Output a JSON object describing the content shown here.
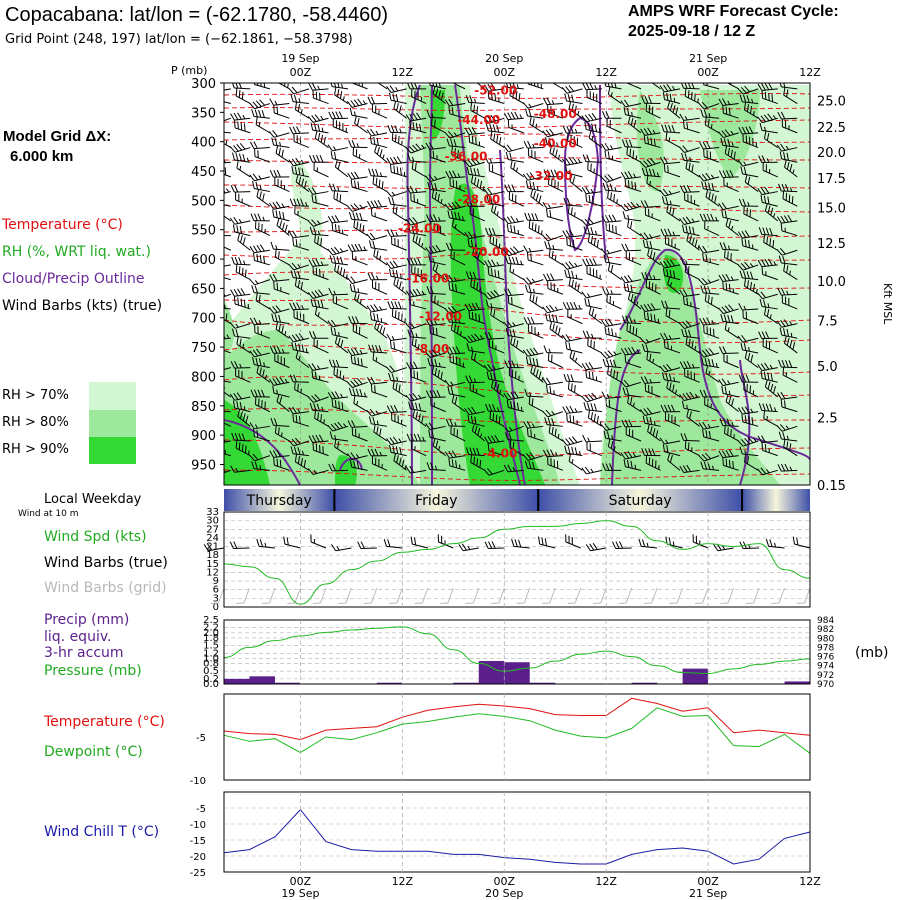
{
  "header": {
    "title": "Copacabana:  lat/lon = (-62.1780, -58.4460)",
    "grid_point": "Grid Point (248, 197) lat/lon = (−62.1861, −58.3798)",
    "cycle_label": "AMPS WRF Forecast Cycle:",
    "cycle_value": "2025-09-18 / 12  Z"
  },
  "sidebar": {
    "model_grid_label": "Model Grid ΔX:",
    "model_grid_value": "6.000 km",
    "temperature_label": "Temperature (°C)",
    "rh_label": "RH (%, WRT liq. wat.)",
    "cloud_label": "Cloud/Precip Outline",
    "wind_label": "Wind Barbs (kts) (true)",
    "rh70": "RH > 70%",
    "rh80": "RH > 80%",
    "rh90": "RH > 90%",
    "local_weekday": "Local Weekday",
    "wind_at": "Wind at 10 m",
    "wind_spd": "Wind Spd (kts)",
    "wind_barbs_true": "Wind Barbs (true)",
    "wind_barbs_grid": "Wind Barbs (grid)",
    "precip_1": "Precip (mm)",
    "precip_2": "liq. equiv.",
    "precip_3": "3-hr accum",
    "pressure": "Pressure (mb)",
    "pressure_unit": "(mb)",
    "temperature": "Temperature (°C)",
    "dewpoint": "Dewpoint (°C)",
    "wind_chill": "Wind Chill T (°C)"
  },
  "colors": {
    "rh70": "#d2f7d2",
    "rh80": "#9ee89e",
    "rh90": "#35d935",
    "temperature": "#e01010",
    "dewpoint": "#22bb22",
    "cloud": "#6a2a9a",
    "precip": "#5a1f8a",
    "windchill": "#1a1aa8",
    "grid": "#b0b0b0"
  },
  "chart_data": [
    {
      "type": "heatmap",
      "name": "cross-section",
      "x_top_labels": [
        {
          "t": 12,
          "label": "00Z",
          "date": "19 Sep"
        },
        {
          "t": 24,
          "label": "12Z",
          "date": ""
        },
        {
          "t": 36,
          "label": "00Z",
          "date": "20 Sep"
        },
        {
          "t": 48,
          "label": "12Z",
          "date": ""
        },
        {
          "t": 60,
          "label": "00Z",
          "date": "21 Sep"
        },
        {
          "t": 72,
          "label": "12Z",
          "date": ""
        }
      ],
      "xlim_hours": [
        3,
        72
      ],
      "p_axis_label": "P (mb)",
      "pressure_ticks": [
        300,
        350,
        400,
        450,
        500,
        550,
        600,
        650,
        700,
        750,
        800,
        850,
        900,
        950
      ],
      "ylim_mb": [
        300,
        985
      ],
      "height_axis_label": "Kft MSL",
      "height_ticks": [
        "25.0",
        "22.5",
        "20.0",
        "17.5",
        "15.0",
        "12.5",
        "10.0",
        "7.5",
        "5.0",
        "2.5",
        "0.15"
      ],
      "height_tick_pressures": [
        330,
        375,
        418,
        462,
        512,
        573,
        637,
        705,
        782,
        870,
        985
      ],
      "temperature_contour_labels": [
        {
          "label": "-52.00",
          "t": 35,
          "p": 320
        },
        {
          "label": "-48.00",
          "t": 42,
          "p": 360
        },
        {
          "label": "-44.00",
          "t": 33,
          "p": 370
        },
        {
          "label": "-40.00",
          "t": 42,
          "p": 410
        },
        {
          "label": "-36.00",
          "t": 31.5,
          "p": 432
        },
        {
          "label": "-32.00",
          "t": 41.5,
          "p": 465
        },
        {
          "label": "-28.00",
          "t": 33,
          "p": 505
        },
        {
          "label": "-24.00",
          "t": 26,
          "p": 555
        },
        {
          "label": "-20.00",
          "t": 34,
          "p": 595
        },
        {
          "label": "-16.00",
          "t": 27,
          "p": 640
        },
        {
          "label": "-12.00",
          "t": 28.5,
          "p": 705
        },
        {
          "label": "-8.00",
          "t": 27.5,
          "p": 760
        },
        {
          "label": "-4.00",
          "t": 35.5,
          "p": 938
        }
      ],
      "legend": [
        "RH > 70%",
        "RH > 80%",
        "RH > 90%"
      ]
    },
    {
      "type": "bar",
      "name": "local-weekday",
      "days": [
        {
          "label": "Thursday",
          "from": 3,
          "to": 16
        },
        {
          "label": "Friday",
          "from": 16,
          "to": 40
        },
        {
          "label": "Saturday",
          "from": 40,
          "to": 64
        },
        {
          "label": "",
          "from": 64,
          "to": 72
        }
      ]
    },
    {
      "type": "line",
      "name": "wind-speed",
      "ylabel": "Wind Spd (kts)",
      "ylim": [
        0,
        33
      ],
      "yticks": [
        0,
        3,
        6,
        9,
        12,
        15,
        18,
        21,
        24,
        27,
        30,
        33
      ],
      "x": [
        3,
        6,
        9,
        12,
        15,
        18,
        21,
        24,
        27,
        30,
        33,
        36,
        39,
        42,
        45,
        48,
        51,
        54,
        57,
        60,
        63,
        66,
        69,
        72
      ],
      "values": [
        15,
        14,
        10,
        1,
        8,
        13,
        16,
        19,
        20,
        22,
        24,
        27,
        28,
        28,
        29,
        30,
        28,
        23,
        20,
        22,
        21,
        22,
        13,
        10
      ],
      "barbs_true_speed": [
        20,
        22,
        24,
        20,
        15,
        16,
        18,
        20,
        22,
        24,
        26,
        28,
        30,
        30,
        30,
        30,
        28,
        26,
        24,
        24,
        24,
        26,
        24,
        22
      ],
      "barbs_grid_speed": [
        10,
        10,
        10,
        10,
        10,
        10,
        10,
        10,
        10,
        10,
        10,
        10,
        10,
        10,
        10,
        10,
        10,
        10,
        10,
        10,
        10,
        10,
        10,
        10
      ]
    },
    {
      "type": "bar",
      "name": "precip-pressure",
      "ylabel": "Precip (mm)",
      "ylim": [
        0,
        2.5
      ],
      "yticks": [
        "0.0",
        "0.2",
        "0.5",
        "0.8",
        "1.0",
        "1.2",
        "1.5",
        "1.8",
        "2.0",
        "2.2",
        "2.5"
      ],
      "precip_x": [
        4.5,
        7.5,
        10.5,
        13.5,
        16.5,
        19.5,
        22.5,
        25.5,
        28.5,
        31.5,
        34.5,
        37.5,
        40.5,
        43.5,
        46.5,
        49.5,
        52.5,
        55.5,
        58.5,
        61.5,
        64.5,
        67.5,
        70.5
      ],
      "precip_values": [
        0.2,
        0.3,
        0.05,
        0.0,
        0.0,
        0.0,
        0.05,
        0.0,
        0.0,
        0.05,
        0.9,
        0.85,
        0.05,
        0.0,
        0.0,
        0.0,
        0.05,
        0.0,
        0.6,
        0.0,
        0.0,
        0.0,
        0.1
      ],
      "pressure_ylabel": "Pressure (mb)",
      "pressure_ylim": [
        970,
        984
      ],
      "pressure_ticks": [
        970,
        972,
        974,
        976,
        978,
        980,
        982,
        984
      ],
      "pressure_x": [
        3,
        6,
        9,
        12,
        15,
        18,
        21,
        24,
        27,
        30,
        33,
        36,
        39,
        42,
        45,
        48,
        51,
        54,
        57,
        60,
        63,
        66,
        69,
        72
      ],
      "pressure_values": [
        975.8,
        978.0,
        979.5,
        980.5,
        981.3,
        981.8,
        982.2,
        982.5,
        981.0,
        977.5,
        974.5,
        972.8,
        973.5,
        975.0,
        976.5,
        977.2,
        976.0,
        974.0,
        972.5,
        972.3,
        973.3,
        974.3,
        975.0,
        975.5
      ]
    },
    {
      "type": "line",
      "name": "temperature-dewpoint",
      "yticks": [
        -5,
        -10
      ],
      "ylim": [
        -10,
        0
      ],
      "x": [
        3,
        6,
        9,
        12,
        15,
        18,
        21,
        24,
        27,
        30,
        33,
        36,
        39,
        42,
        45,
        48,
        51,
        54,
        57,
        60,
        63,
        66,
        69,
        72
      ],
      "series": [
        {
          "name": "Temperature (°C)",
          "values": [
            -4.3,
            -4.6,
            -4.7,
            -5.3,
            -4.2,
            -4.0,
            -3.8,
            -2.7,
            -1.9,
            -1.5,
            -1.2,
            -1.4,
            -1.7,
            -2.4,
            -2.5,
            -2.5,
            -0.5,
            -1.1,
            -2.0,
            -1.6,
            -4.5,
            -4.2,
            -4.5,
            -4.8
          ]
        },
        {
          "name": "Dewpoint (°C)",
          "values": [
            -4.8,
            -5.5,
            -5.2,
            -6.8,
            -5.0,
            -5.3,
            -4.5,
            -3.5,
            -3.2,
            -2.7,
            -2.3,
            -2.6,
            -3.1,
            -4.2,
            -4.9,
            -5.1,
            -4.0,
            -1.6,
            -2.6,
            -2.5,
            -6.0,
            -6.1,
            -4.7,
            -6.9
          ]
        }
      ]
    },
    {
      "type": "line",
      "name": "wind-chill",
      "ylabel": "Wind Chill T (°C)",
      "ylim": [
        -25,
        0
      ],
      "yticks": [
        -5,
        -10,
        -15,
        -20,
        -25
      ],
      "x": [
        3,
        6,
        9,
        12,
        15,
        18,
        21,
        24,
        27,
        30,
        33,
        36,
        39,
        42,
        45,
        48,
        51,
        54,
        57,
        60,
        63,
        66,
        69,
        72
      ],
      "values": [
        -19,
        -18,
        -14,
        -5.5,
        -15.5,
        -18,
        -18.5,
        -18.5,
        -18.5,
        -19.5,
        -19.5,
        -20.5,
        -21,
        -22,
        -22.5,
        -22.5,
        -19.5,
        -18,
        -17.5,
        -18.5,
        -22.5,
        -21,
        -14.5,
        -12.5
      ]
    }
  ],
  "bottom_axis": [
    {
      "t": 12,
      "label": "00Z",
      "date": "19 Sep"
    },
    {
      "t": 24,
      "label": "12Z",
      "date": ""
    },
    {
      "t": 36,
      "label": "00Z",
      "date": "20 Sep"
    },
    {
      "t": 48,
      "label": "12Z",
      "date": ""
    },
    {
      "t": 60,
      "label": "00Z",
      "date": "21 Sep"
    },
    {
      "t": 72,
      "label": "12Z",
      "date": ""
    }
  ]
}
